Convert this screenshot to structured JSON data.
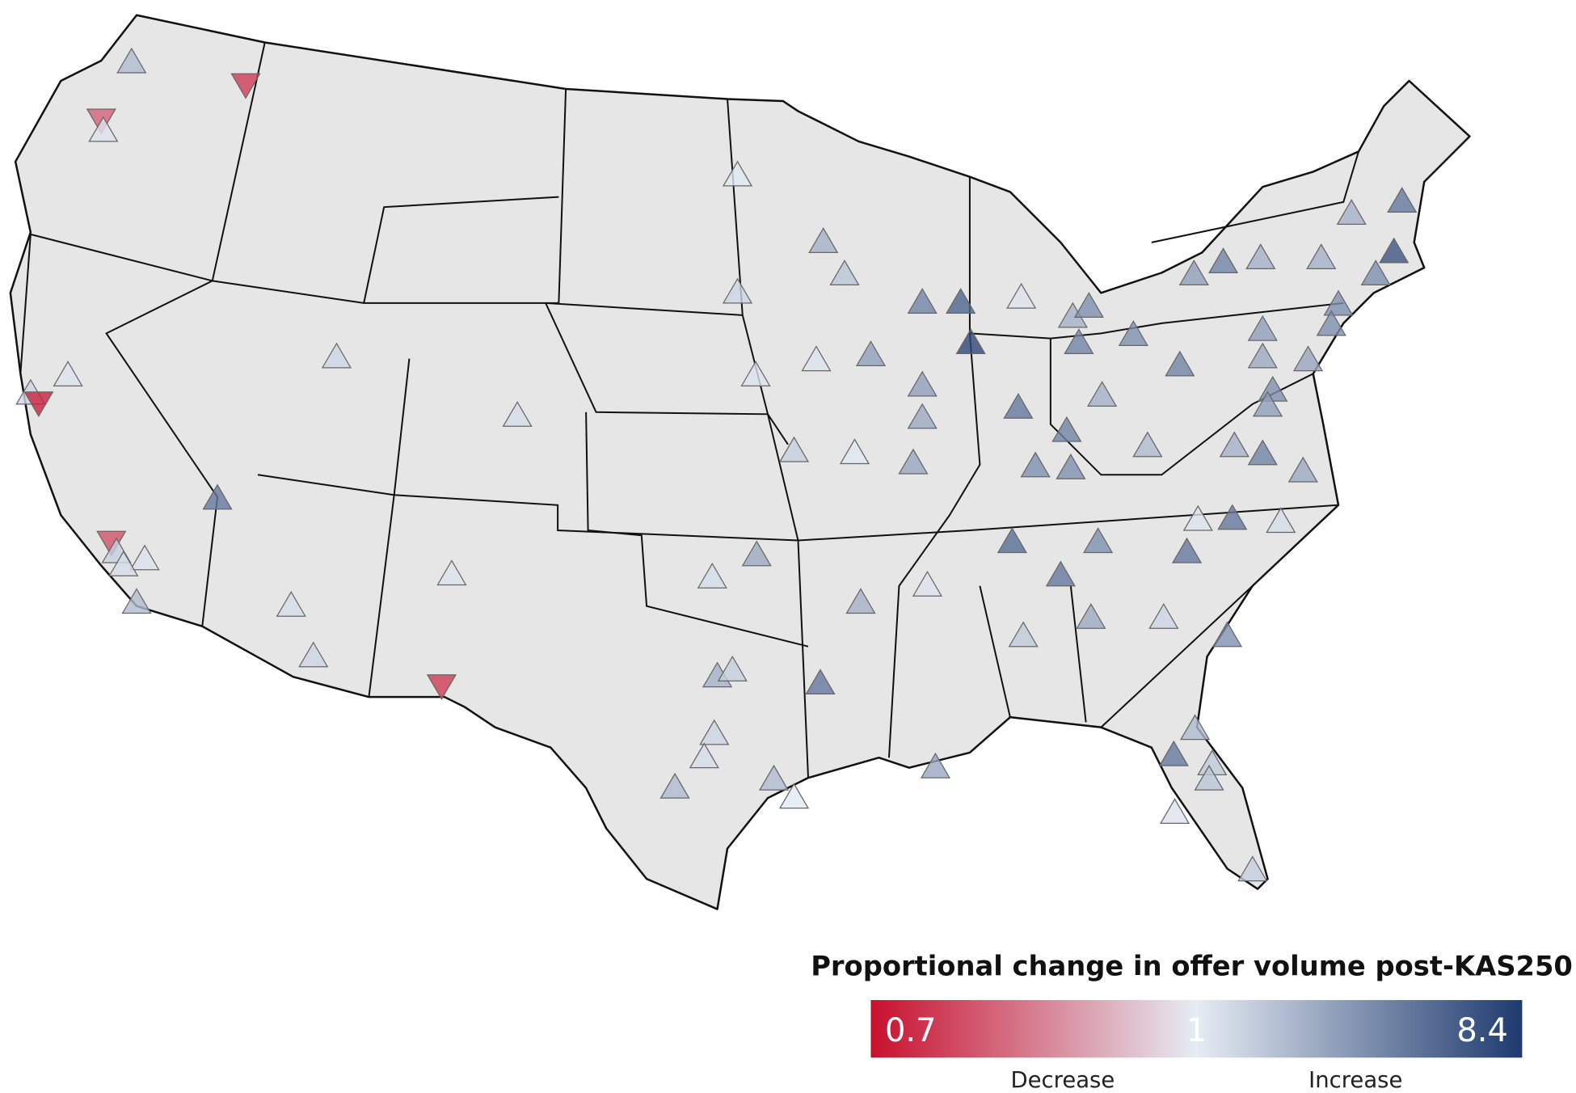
{
  "chart_data": {
    "type": "map",
    "legend_title": "Proportional change in offer volume post-KAS250",
    "colorbar": {
      "ticks": [
        0.7,
        1,
        8.4
      ],
      "colors": [
        "#c8102e",
        "#e6ecf4",
        "#1e3a6e"
      ],
      "low_label": "Decrease",
      "high_label": "Increase"
    },
    "values": [
      1.8,
      0.75,
      0.8,
      1.1,
      1.1,
      1.3,
      0.72,
      4,
      0.78,
      1.4,
      1.1,
      1.2,
      1.8,
      1.3,
      1.2,
      1.2,
      1.3,
      1.1,
      0.75,
      1.05,
      2,
      1.6,
      1.3,
      1.1,
      2.5,
      1.1,
      1.4,
      1.05,
      2.5,
      2.2,
      2.3,
      3.5,
      5,
      7,
      1.1,
      2,
      3,
      3.5,
      3,
      4,
      3,
      3.5,
      3,
      2,
      1.8,
      3.5,
      2.5,
      2.2,
      2.5,
      3.5,
      2,
      2,
      2,
      4,
      6,
      3,
      3,
      3,
      2.3,
      3,
      2.5,
      2,
      3.5,
      2.2,
      1.1,
      4,
      1.2,
      4.5,
      3,
      4,
      4,
      2,
      1.1,
      1.5,
      2.2,
      1.3,
      3,
      4,
      2.3,
      1.2,
      2.2,
      2,
      1.4,
      1.3,
      1.2,
      1.8,
      1.8,
      1.05,
      1.8,
      4,
      1.5,
      1.6,
      1.1,
      1.4
    ]
  }
}
